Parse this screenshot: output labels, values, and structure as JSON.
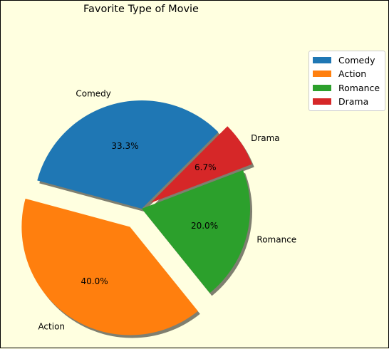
{
  "chart_data": {
    "type": "pie",
    "title": "Favorite Type of Movie",
    "categories": [
      "Comedy",
      "Action",
      "Romance",
      "Drama"
    ],
    "values": [
      33.3,
      40.0,
      20.0,
      6.7
    ],
    "percent_labels": [
      "33.3%",
      "40.0%",
      "20.0%",
      "6.7%"
    ],
    "explode": [
      0,
      0.2,
      0,
      0.1
    ],
    "colors": [
      "#1f77b4",
      "#ff7f0e",
      "#2ca02c",
      "#d62728"
    ],
    "start_angle_deg": 45,
    "shadow": true,
    "legend": {
      "placement": "upper-right",
      "entries": [
        "Comedy",
        "Action",
        "Romance",
        "Drama"
      ]
    },
    "background_color": "#ffffe0"
  }
}
